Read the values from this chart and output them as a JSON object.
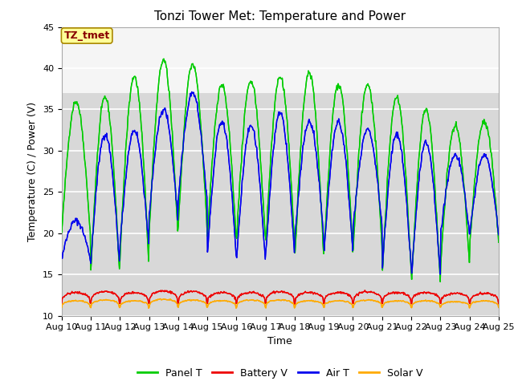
{
  "title": "Tonzi Tower Met: Temperature and Power",
  "xlabel": "Time",
  "ylabel": "Temperature (C) / Power (V)",
  "ylim": [
    10,
    45
  ],
  "ytick_values": [
    10,
    15,
    20,
    25,
    30,
    35,
    40,
    45
  ],
  "xtick_labels": [
    "Aug 10",
    "Aug 11",
    "Aug 12",
    "Aug 13",
    "Aug 14",
    "Aug 15",
    "Aug 16",
    "Aug 17",
    "Aug 18",
    "Aug 19",
    "Aug 20",
    "Aug 21",
    "Aug 22",
    "Aug 23",
    "Aug 24",
    "Aug 25"
  ],
  "colors": {
    "panel_t": "#00cc00",
    "battery_v": "#ee0000",
    "air_t": "#0000ee",
    "solar_v": "#ffaa00"
  },
  "legend_labels": [
    "Panel T",
    "Battery V",
    "Air T",
    "Solar V"
  ],
  "plot_bg_lower": "#d8d8d8",
  "plot_bg_upper": "#f0f0f0",
  "annotation_text": "TZ_tmet",
  "annotation_color": "#880000",
  "annotation_bg": "#ffff99",
  "annotation_border": "#aa8800",
  "title_fontsize": 11,
  "axis_fontsize": 9,
  "tick_fontsize": 8,
  "panel_peaks": [
    36.0,
    36.5,
    39.0,
    41.0,
    40.5,
    38.0,
    38.5,
    39.0,
    39.5,
    38.0,
    38.0,
    36.5,
    35.0,
    33.0,
    33.5
  ],
  "panel_troughs": [
    20.0,
    15.5,
    17.0,
    20.0,
    21.0,
    19.5,
    19.5,
    19.0,
    17.5,
    18.0,
    18.5,
    15.5,
    14.0,
    16.5,
    19.0
  ],
  "air_peaks": [
    21.5,
    32.0,
    32.5,
    35.0,
    37.0,
    33.5,
    33.0,
    34.5,
    33.5,
    33.5,
    32.5,
    32.0,
    31.0,
    29.5,
    29.5
  ],
  "air_troughs": [
    17.0,
    16.5,
    18.5,
    22.0,
    24.0,
    17.5,
    17.0,
    17.5,
    19.5,
    18.0,
    21.0,
    16.0,
    15.0,
    20.0,
    20.0
  ],
  "batt_base": 11.5,
  "batt_peaks": [
    12.8,
    12.9,
    12.8,
    13.0,
    12.9,
    12.8,
    12.8,
    12.9,
    12.8,
    12.8,
    12.9,
    12.8,
    12.8,
    12.7,
    12.7
  ],
  "solar_base": 11.0,
  "solar_peaks": [
    11.8,
    11.9,
    11.8,
    12.0,
    11.9,
    11.8,
    11.9,
    11.9,
    11.8,
    11.8,
    11.9,
    11.8,
    11.8,
    11.7,
    11.8
  ],
  "pts_per_day": 48,
  "n_days": 15
}
